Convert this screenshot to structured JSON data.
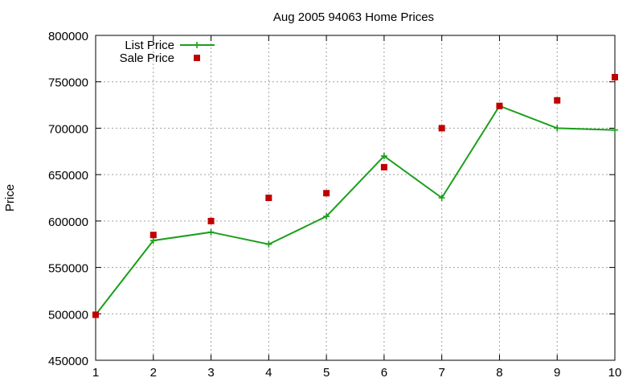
{
  "chart_data": {
    "type": "line",
    "title": "Aug 2005 94063 Home Prices",
    "xlabel": "",
    "ylabel": "Price",
    "xlim": [
      1,
      10
    ],
    "ylim": [
      450000,
      800000
    ],
    "x_ticks": [
      1,
      2,
      3,
      4,
      5,
      6,
      7,
      8,
      9,
      10
    ],
    "y_ticks": [
      450000,
      500000,
      550000,
      600000,
      650000,
      700000,
      750000,
      800000
    ],
    "grid": true,
    "legend_position": "top-left",
    "series": [
      {
        "name": "List Price",
        "style": "line-with-plus-markers",
        "color": "#1a9f1a",
        "x": [
          1,
          2,
          3,
          4,
          5,
          6,
          7,
          8,
          9,
          10
        ],
        "y": [
          499000,
          579000,
          588000,
          575000,
          605000,
          670000,
          625000,
          724000,
          700000,
          698000
        ]
      },
      {
        "name": "Sale Price",
        "style": "square-markers",
        "color": "#c00000",
        "x": [
          1,
          2,
          3,
          4,
          5,
          6,
          7,
          8,
          9,
          10
        ],
        "y": [
          499000,
          585000,
          600000,
          625000,
          630000,
          658000,
          700000,
          724000,
          730000,
          755000
        ]
      }
    ]
  }
}
